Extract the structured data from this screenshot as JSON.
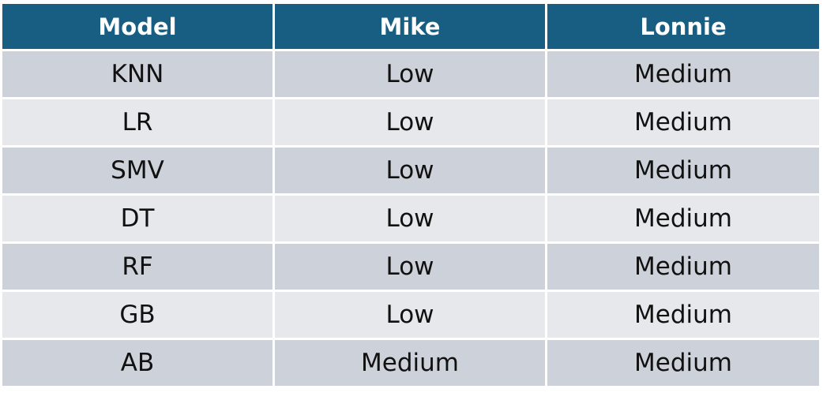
{
  "table": {
    "headers": [
      "Model",
      "Mike",
      "Lonnie"
    ],
    "rows": [
      [
        "KNN",
        "Low",
        "Medium"
      ],
      [
        "LR",
        "Low",
        "Medium"
      ],
      [
        "SMV",
        "Low",
        "Medium"
      ],
      [
        "DT",
        "Low",
        "Medium"
      ],
      [
        "RF",
        "Low",
        "Medium"
      ],
      [
        "GB",
        "Low",
        "Medium"
      ],
      [
        "AB",
        "Medium",
        "Medium"
      ]
    ]
  },
  "colors": {
    "header_bg": "#175e82",
    "header_text": "#ffffff",
    "row_odd_bg": "#cdd1d9",
    "row_even_bg": "#e6e8eb"
  }
}
